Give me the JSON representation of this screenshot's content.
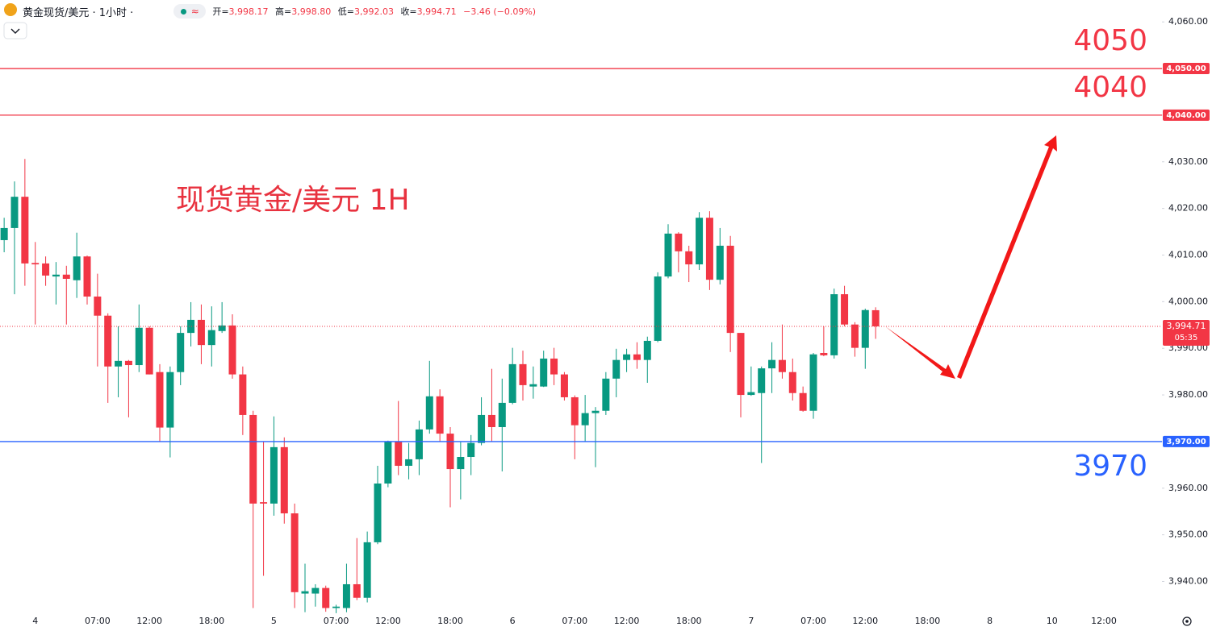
{
  "header": {
    "symbol": "黄金现货/美元 · 1小时 ·",
    "badge": "≈",
    "ohlc": [
      {
        "label": "开=",
        "value": "3,998.17"
      },
      {
        "label": "高=",
        "value": "3,998.80"
      },
      {
        "label": "低=",
        "value": "3,992.03"
      },
      {
        "label": "收=",
        "value": "3,994.71"
      }
    ],
    "change": "−3.46 (−0.09%)"
  },
  "chart_data": {
    "type": "candlestick",
    "title": "现货黄金/美元 1H",
    "categories": [
      null,
      null,
      null,
      "4",
      null,
      null,
      null,
      null,
      null,
      "07:00",
      null,
      null,
      null,
      null,
      "12:00",
      null,
      null,
      null,
      null,
      null,
      "18:00",
      null,
      null,
      null,
      null,
      null,
      "5",
      null,
      null,
      null,
      null,
      null,
      "07:00",
      null,
      null,
      null,
      null,
      "12:00",
      null,
      null,
      null,
      null,
      null,
      "18:00",
      null,
      null,
      null,
      null,
      null,
      "6",
      null,
      null,
      null,
      null,
      null,
      "07:00",
      null,
      null,
      null,
      null,
      "12:00",
      null,
      null,
      null,
      null,
      null,
      "18:00",
      null,
      null,
      null,
      null,
      null,
      "7",
      null,
      null,
      null,
      null,
      null,
      "07:00",
      null,
      null,
      null,
      null,
      "12:00",
      null,
      null,
      null,
      null,
      null,
      "18:00",
      null,
      null,
      null,
      null,
      null,
      "8",
      null,
      null,
      null,
      null,
      null,
      "10",
      null,
      null,
      null,
      null,
      "12:00",
      null,
      null,
      null,
      null,
      null
    ],
    "open": [
      4013.2,
      4015.8,
      4022.5,
      4008.3,
      4008.2,
      4005.4,
      4005.8,
      4004.6,
      4009.7,
      4001.1,
      3997.0,
      3986.1,
      3987.3,
      3986.4,
      3994.4,
      3984.9,
      3973.0,
      3984.9,
      3993.3,
      3996.1,
      3990.7,
      3993.7,
      3994.9,
      3984.4,
      3975.7,
      3957.0,
      3956.7,
      3968.8,
      3954.6,
      3937.4,
      3937.4,
      3938.6,
      3934.3,
      3934.3,
      3939.4,
      3936.5,
      3948.4,
      3961.0,
      3970.0,
      3964.8,
      3966.2,
      3972.6,
      3979.7,
      3971.7,
      3964.1,
      3966.7,
      3969.7,
      3975.7,
      3973.1,
      3978.3,
      3986.6,
      3981.8,
      3981.8,
      3987.8,
      3984.4,
      3979.5,
      3973.5,
      3976.1,
      3976.6,
      3983.5,
      3987.5,
      3988.7,
      3987.5,
      3991.6,
      4005.4,
      4014.6,
      4010.8,
      4008.0,
      4018.0,
      4004.7,
      4012.0,
      3993.3,
      3980.0,
      3980.4,
      3985.7,
      3987.5,
      3984.9,
      3980.4,
      3976.6,
      3989.0,
      3988.5,
      4001.6,
      3995.1,
      3990.1,
      3998.17,
      null,
      null,
      null,
      null,
      null,
      null,
      null,
      null,
      null,
      null,
      null,
      null,
      null,
      null,
      null,
      null,
      null,
      null,
      null,
      null,
      null,
      null,
      null,
      null,
      null,
      null,
      null
    ],
    "high": [
      4018.0,
      4025.8,
      4030.6,
      4012.8,
      4009.7,
      4008.5,
      4007.7,
      4014.8,
      4009.9,
      4006.0,
      3997.5,
      3994.7,
      3987.5,
      3999.4,
      3994.7,
      3986.6,
      3986.1,
      3994.7,
      3999.9,
      3999.4,
      3999.0,
      3999.9,
      3997.3,
      3986.1,
      3976.6,
      3970.0,
      3975.4,
      3970.9,
      3956.7,
      3943.8,
      3939.4,
      3939.1,
      3935.0,
      3943.8,
      3949.3,
      3950.7,
      3964.8,
      3970.2,
      3978.7,
      3969.7,
      3974.5,
      3987.3,
      3981.2,
      3973.1,
      3970.0,
      3971.4,
      3979.5,
      3985.6,
      3983.5,
      3990.1,
      3989.5,
      3986.1,
      3989.5,
      3990.1,
      3984.9,
      3979.9,
      3980.0,
      3977.4,
      3984.9,
      3989.9,
      3989.9,
      3991.3,
      3992.5,
      4006.3,
      4016.6,
      4014.9,
      4012.0,
      4019.2,
      4019.4,
      4015.8,
      4014.1,
      3993.3,
      3986.1,
      3986.1,
      3991.3,
      3995.1,
      3987.8,
      3981.8,
      3989.0,
      3994.7,
      4002.8,
      4003.4,
      3995.6,
      3998.5,
      3998.8,
      null,
      null,
      null,
      null,
      null,
      null,
      null,
      null,
      null,
      null,
      null,
      null,
      null,
      null,
      null,
      null,
      null,
      null,
      null,
      null,
      null,
      null,
      null,
      null,
      null,
      null,
      null
    ],
    "low": [
      4010.6,
      4001.6,
      4003.4,
      3995.1,
      4003.4,
      3999.4,
      3995.1,
      4000.8,
      3999.4,
      3986.1,
      3978.3,
      3979.5,
      3975.2,
      3984.9,
      3984.4,
      3970.0,
      3966.6,
      3982.1,
      3990.4,
      3986.6,
      3986.1,
      3993.3,
      3983.5,
      3971.4,
      3934.3,
      3941.2,
      3954.1,
      3952.4,
      3934.3,
      3933.4,
      3934.6,
      3933.5,
      3933.2,
      3933.4,
      3936.0,
      3935.5,
      3948.0,
      3960.2,
      3962.8,
      3961.9,
      3962.8,
      3971.7,
      3970.0,
      3955.9,
      3957.6,
      3962.8,
      3969.2,
      3970.0,
      3963.6,
      3978.0,
      3978.8,
      3979.2,
      3981.7,
      3982.1,
      3978.8,
      3966.2,
      3970.0,
      3964.5,
      3975.7,
      3979.5,
      3984.9,
      3985.6,
      3982.6,
      3991.3,
      4005.0,
      4006.3,
      4004.2,
      4006.8,
      4002.5,
      4003.7,
      3989.2,
      3975.2,
      3979.8,
      3965.4,
      3980.4,
      3983.5,
      3978.8,
      3976.4,
      3974.9,
      3988.3,
      3987.8,
      3994.7,
      3988.2,
      3985.6,
      3992.03,
      null,
      null,
      null,
      null,
      null,
      null,
      null,
      null,
      null,
      null,
      null,
      null,
      null,
      null,
      null,
      null,
      null,
      null,
      null,
      null,
      null,
      null,
      null,
      null,
      null,
      null,
      null
    ],
    "close": [
      4015.8,
      4022.5,
      4008.2,
      4008.0,
      4005.6,
      4005.8,
      4004.9,
      4009.7,
      4001.1,
      3997.0,
      3986.1,
      3987.3,
      3986.4,
      3994.4,
      3984.4,
      3973.0,
      3984.9,
      3993.3,
      3996.1,
      3990.7,
      3993.9,
      3994.9,
      3984.4,
      3975.7,
      3956.7,
      3956.7,
      3968.8,
      3954.6,
      3937.7,
      3937.9,
      3938.6,
      3934.3,
      3934.6,
      3939.4,
      3936.5,
      3948.4,
      3961.0,
      3970.0,
      3964.8,
      3966.2,
      3972.6,
      3979.7,
      3971.7,
      3964.1,
      3966.7,
      3969.7,
      3975.7,
      3973.1,
      3978.3,
      3986.6,
      3982.1,
      3982.3,
      3987.8,
      3984.4,
      3979.5,
      3973.5,
      3976.1,
      3976.6,
      3983.5,
      3987.5,
      3988.7,
      3987.5,
      3991.6,
      4005.4,
      4014.6,
      4010.8,
      4008.0,
      4018.0,
      4004.7,
      4012.0,
      3993.3,
      3980.0,
      3980.6,
      3985.7,
      3987.5,
      3984.9,
      3980.4,
      3976.6,
      3988.7,
      3988.5,
      4001.6,
      3995.1,
      3990.1,
      3998.2,
      3994.71,
      null,
      null,
      null,
      null,
      null,
      null,
      null,
      null,
      null,
      null,
      null,
      null,
      null,
      null,
      null,
      null,
      null,
      null,
      null,
      null,
      null,
      null,
      null,
      null,
      null,
      null,
      null
    ],
    "up_color": "#089981",
    "down_color": "#f23645",
    "ylim": [
      3933,
      4064.7
    ],
    "yticks": [
      {
        "value": 4060,
        "label": "4,060.00"
      },
      {
        "value": 4050,
        "label": "4,050.00"
      },
      {
        "value": 4040,
        "label": "4,040.00"
      },
      {
        "value": 4030,
        "label": "4,030.00"
      },
      {
        "value": 4020,
        "label": "4,020.00"
      },
      {
        "value": 4010,
        "label": "4,010.00"
      },
      {
        "value": 4000,
        "label": "4,000.00"
      },
      {
        "value": 3990,
        "label": "3,990.00"
      },
      {
        "value": 3980,
        "label": "3,980.00"
      },
      {
        "value": 3970,
        "label": "3,970.00"
      },
      {
        "value": 3960,
        "label": "3,960.00"
      },
      {
        "value": 3950,
        "label": "3,950.00"
      },
      {
        "value": 3940,
        "label": "3,940.00"
      }
    ],
    "grid": false,
    "price_lines": [
      {
        "value": 4050,
        "label": "4,050.00",
        "annotation": "4050",
        "color": "#f23645"
      },
      {
        "value": 4040,
        "label": "4,040.00",
        "annotation": "4040",
        "color": "#f23645"
      },
      {
        "value": 3970,
        "label": "3,970.00",
        "annotation": "3970",
        "color": "#2962ff"
      }
    ],
    "last_price": {
      "value": 3994.71,
      "label": "3,994.71",
      "countdown": "05:35",
      "color": "#f23645"
    }
  }
}
